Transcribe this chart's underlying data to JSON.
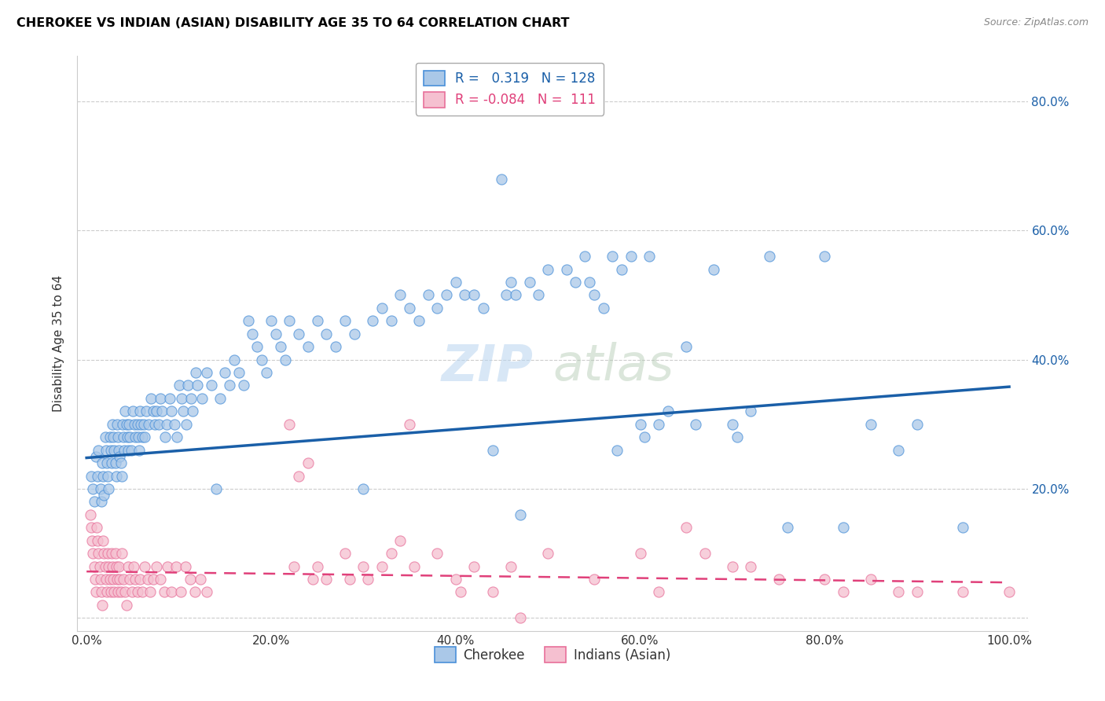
{
  "title": "CHEROKEE VS INDIAN (ASIAN) DISABILITY AGE 35 TO 64 CORRELATION CHART",
  "source": "Source: ZipAtlas.com",
  "ylabel": "Disability Age 35 to 64",
  "x_range": [
    -0.01,
    1.02
  ],
  "y_range": [
    -0.02,
    0.87
  ],
  "cherokee_color": "#aac8e8",
  "cherokee_edge_color": "#4a90d9",
  "cherokee_line_color": "#1a5fa8",
  "indian_color": "#f5c0d0",
  "indian_edge_color": "#e8709a",
  "indian_line_color": "#e0407a",
  "legend1_r": "0.319",
  "legend1_n": "128",
  "legend2_r": "-0.084",
  "legend2_n": "111",
  "watermark": "ZIPatlas",
  "cherokee_trend": [
    0.0,
    0.248,
    1.0,
    0.358
  ],
  "indian_trend": [
    0.0,
    0.072,
    1.0,
    0.055
  ],
  "cherokee_scatter": [
    [
      0.005,
      0.22
    ],
    [
      0.007,
      0.2
    ],
    [
      0.008,
      0.18
    ],
    [
      0.01,
      0.25
    ],
    [
      0.012,
      0.22
    ],
    [
      0.013,
      0.26
    ],
    [
      0.015,
      0.2
    ],
    [
      0.016,
      0.18
    ],
    [
      0.017,
      0.24
    ],
    [
      0.018,
      0.22
    ],
    [
      0.019,
      0.19
    ],
    [
      0.02,
      0.28
    ],
    [
      0.021,
      0.26
    ],
    [
      0.022,
      0.24
    ],
    [
      0.023,
      0.22
    ],
    [
      0.024,
      0.2
    ],
    [
      0.025,
      0.28
    ],
    [
      0.026,
      0.26
    ],
    [
      0.027,
      0.24
    ],
    [
      0.028,
      0.3
    ],
    [
      0.029,
      0.28
    ],
    [
      0.03,
      0.26
    ],
    [
      0.031,
      0.24
    ],
    [
      0.032,
      0.22
    ],
    [
      0.033,
      0.3
    ],
    [
      0.034,
      0.28
    ],
    [
      0.035,
      0.26
    ],
    [
      0.036,
      0.25
    ],
    [
      0.037,
      0.24
    ],
    [
      0.038,
      0.22
    ],
    [
      0.039,
      0.3
    ],
    [
      0.04,
      0.28
    ],
    [
      0.041,
      0.26
    ],
    [
      0.042,
      0.32
    ],
    [
      0.043,
      0.3
    ],
    [
      0.044,
      0.28
    ],
    [
      0.045,
      0.26
    ],
    [
      0.046,
      0.3
    ],
    [
      0.047,
      0.28
    ],
    [
      0.048,
      0.26
    ],
    [
      0.05,
      0.32
    ],
    [
      0.052,
      0.3
    ],
    [
      0.053,
      0.28
    ],
    [
      0.055,
      0.3
    ],
    [
      0.056,
      0.28
    ],
    [
      0.057,
      0.26
    ],
    [
      0.058,
      0.32
    ],
    [
      0.059,
      0.3
    ],
    [
      0.06,
      0.28
    ],
    [
      0.062,
      0.3
    ],
    [
      0.063,
      0.28
    ],
    [
      0.065,
      0.32
    ],
    [
      0.067,
      0.3
    ],
    [
      0.07,
      0.34
    ],
    [
      0.072,
      0.32
    ],
    [
      0.074,
      0.3
    ],
    [
      0.076,
      0.32
    ],
    [
      0.078,
      0.3
    ],
    [
      0.08,
      0.34
    ],
    [
      0.082,
      0.32
    ],
    [
      0.085,
      0.28
    ],
    [
      0.087,
      0.3
    ],
    [
      0.09,
      0.34
    ],
    [
      0.092,
      0.32
    ],
    [
      0.095,
      0.3
    ],
    [
      0.098,
      0.28
    ],
    [
      0.1,
      0.36
    ],
    [
      0.103,
      0.34
    ],
    [
      0.105,
      0.32
    ],
    [
      0.108,
      0.3
    ],
    [
      0.11,
      0.36
    ],
    [
      0.113,
      0.34
    ],
    [
      0.115,
      0.32
    ],
    [
      0.118,
      0.38
    ],
    [
      0.12,
      0.36
    ],
    [
      0.125,
      0.34
    ],
    [
      0.13,
      0.38
    ],
    [
      0.135,
      0.36
    ],
    [
      0.14,
      0.2
    ],
    [
      0.145,
      0.34
    ],
    [
      0.15,
      0.38
    ],
    [
      0.155,
      0.36
    ],
    [
      0.16,
      0.4
    ],
    [
      0.165,
      0.38
    ],
    [
      0.17,
      0.36
    ],
    [
      0.175,
      0.46
    ],
    [
      0.18,
      0.44
    ],
    [
      0.185,
      0.42
    ],
    [
      0.19,
      0.4
    ],
    [
      0.195,
      0.38
    ],
    [
      0.2,
      0.46
    ],
    [
      0.205,
      0.44
    ],
    [
      0.21,
      0.42
    ],
    [
      0.215,
      0.4
    ],
    [
      0.22,
      0.46
    ],
    [
      0.23,
      0.44
    ],
    [
      0.24,
      0.42
    ],
    [
      0.25,
      0.46
    ],
    [
      0.26,
      0.44
    ],
    [
      0.27,
      0.42
    ],
    [
      0.28,
      0.46
    ],
    [
      0.29,
      0.44
    ],
    [
      0.3,
      0.2
    ],
    [
      0.31,
      0.46
    ],
    [
      0.32,
      0.48
    ],
    [
      0.33,
      0.46
    ],
    [
      0.34,
      0.5
    ],
    [
      0.35,
      0.48
    ],
    [
      0.36,
      0.46
    ],
    [
      0.37,
      0.5
    ],
    [
      0.38,
      0.48
    ],
    [
      0.39,
      0.5
    ],
    [
      0.4,
      0.52
    ],
    [
      0.41,
      0.5
    ],
    [
      0.42,
      0.5
    ],
    [
      0.43,
      0.48
    ],
    [
      0.44,
      0.26
    ],
    [
      0.45,
      0.68
    ],
    [
      0.455,
      0.5
    ],
    [
      0.46,
      0.52
    ],
    [
      0.465,
      0.5
    ],
    [
      0.47,
      0.16
    ],
    [
      0.48,
      0.52
    ],
    [
      0.49,
      0.5
    ],
    [
      0.5,
      0.54
    ],
    [
      0.52,
      0.54
    ],
    [
      0.53,
      0.52
    ],
    [
      0.54,
      0.56
    ],
    [
      0.545,
      0.52
    ],
    [
      0.55,
      0.5
    ],
    [
      0.56,
      0.48
    ],
    [
      0.57,
      0.56
    ],
    [
      0.575,
      0.26
    ],
    [
      0.58,
      0.54
    ],
    [
      0.59,
      0.56
    ],
    [
      0.6,
      0.3
    ],
    [
      0.605,
      0.28
    ],
    [
      0.61,
      0.56
    ],
    [
      0.62,
      0.3
    ],
    [
      0.63,
      0.32
    ],
    [
      0.65,
      0.42
    ],
    [
      0.66,
      0.3
    ],
    [
      0.68,
      0.54
    ],
    [
      0.7,
      0.3
    ],
    [
      0.705,
      0.28
    ],
    [
      0.72,
      0.32
    ],
    [
      0.74,
      0.56
    ],
    [
      0.76,
      0.14
    ],
    [
      0.8,
      0.56
    ],
    [
      0.82,
      0.14
    ],
    [
      0.85,
      0.3
    ],
    [
      0.88,
      0.26
    ],
    [
      0.9,
      0.3
    ],
    [
      0.95,
      0.14
    ]
  ],
  "indian_scatter": [
    [
      0.004,
      0.16
    ],
    [
      0.005,
      0.14
    ],
    [
      0.006,
      0.12
    ],
    [
      0.007,
      0.1
    ],
    [
      0.008,
      0.08
    ],
    [
      0.009,
      0.06
    ],
    [
      0.01,
      0.04
    ],
    [
      0.011,
      0.14
    ],
    [
      0.012,
      0.12
    ],
    [
      0.013,
      0.1
    ],
    [
      0.014,
      0.08
    ],
    [
      0.015,
      0.06
    ],
    [
      0.016,
      0.04
    ],
    [
      0.017,
      0.02
    ],
    [
      0.018,
      0.12
    ],
    [
      0.019,
      0.1
    ],
    [
      0.02,
      0.08
    ],
    [
      0.021,
      0.06
    ],
    [
      0.022,
      0.04
    ],
    [
      0.023,
      0.1
    ],
    [
      0.024,
      0.08
    ],
    [
      0.025,
      0.06
    ],
    [
      0.026,
      0.04
    ],
    [
      0.027,
      0.1
    ],
    [
      0.028,
      0.08
    ],
    [
      0.029,
      0.06
    ],
    [
      0.03,
      0.04
    ],
    [
      0.031,
      0.1
    ],
    [
      0.032,
      0.08
    ],
    [
      0.033,
      0.06
    ],
    [
      0.034,
      0.04
    ],
    [
      0.035,
      0.08
    ],
    [
      0.036,
      0.06
    ],
    [
      0.037,
      0.04
    ],
    [
      0.038,
      0.1
    ],
    [
      0.04,
      0.06
    ],
    [
      0.042,
      0.04
    ],
    [
      0.043,
      0.02
    ],
    [
      0.045,
      0.08
    ],
    [
      0.047,
      0.06
    ],
    [
      0.049,
      0.04
    ],
    [
      0.051,
      0.08
    ],
    [
      0.053,
      0.06
    ],
    [
      0.055,
      0.04
    ],
    [
      0.058,
      0.06
    ],
    [
      0.06,
      0.04
    ],
    [
      0.063,
      0.08
    ],
    [
      0.066,
      0.06
    ],
    [
      0.069,
      0.04
    ],
    [
      0.072,
      0.06
    ],
    [
      0.076,
      0.08
    ],
    [
      0.08,
      0.06
    ],
    [
      0.084,
      0.04
    ],
    [
      0.088,
      0.08
    ],
    [
      0.092,
      0.04
    ],
    [
      0.097,
      0.08
    ],
    [
      0.102,
      0.04
    ],
    [
      0.107,
      0.08
    ],
    [
      0.112,
      0.06
    ],
    [
      0.117,
      0.04
    ],
    [
      0.123,
      0.06
    ],
    [
      0.13,
      0.04
    ],
    [
      0.22,
      0.3
    ],
    [
      0.225,
      0.08
    ],
    [
      0.23,
      0.22
    ],
    [
      0.24,
      0.24
    ],
    [
      0.245,
      0.06
    ],
    [
      0.25,
      0.08
    ],
    [
      0.26,
      0.06
    ],
    [
      0.28,
      0.1
    ],
    [
      0.285,
      0.06
    ],
    [
      0.3,
      0.08
    ],
    [
      0.305,
      0.06
    ],
    [
      0.32,
      0.08
    ],
    [
      0.33,
      0.1
    ],
    [
      0.34,
      0.12
    ],
    [
      0.35,
      0.3
    ],
    [
      0.355,
      0.08
    ],
    [
      0.38,
      0.1
    ],
    [
      0.4,
      0.06
    ],
    [
      0.405,
      0.04
    ],
    [
      0.42,
      0.08
    ],
    [
      0.44,
      0.04
    ],
    [
      0.46,
      0.08
    ],
    [
      0.47,
      0.0
    ],
    [
      0.5,
      0.1
    ],
    [
      0.55,
      0.06
    ],
    [
      0.6,
      0.1
    ],
    [
      0.62,
      0.04
    ],
    [
      0.65,
      0.14
    ],
    [
      0.67,
      0.1
    ],
    [
      0.7,
      0.08
    ],
    [
      0.72,
      0.08
    ],
    [
      0.75,
      0.06
    ],
    [
      0.8,
      0.06
    ],
    [
      0.82,
      0.04
    ],
    [
      0.85,
      0.06
    ],
    [
      0.88,
      0.04
    ],
    [
      0.9,
      0.04
    ],
    [
      0.95,
      0.04
    ],
    [
      1.0,
      0.04
    ]
  ]
}
